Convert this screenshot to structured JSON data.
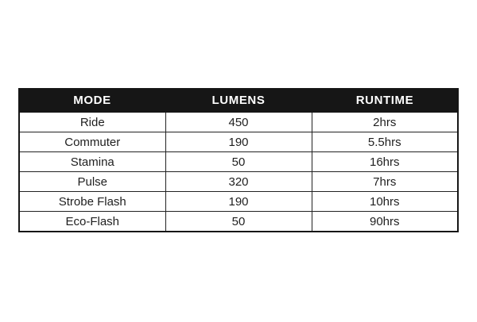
{
  "colors": {
    "page_background": "#ffffff",
    "header_background": "#161616",
    "header_text": "#ffffff",
    "cell_text": "#1f1f1f",
    "border": "#222222"
  },
  "chart_data": {
    "type": "table",
    "title": "",
    "columns": [
      "MODE",
      "LUMENS",
      "RUNTIME"
    ],
    "rows": [
      [
        "Ride",
        "450",
        "2hrs"
      ],
      [
        "Commuter",
        "190",
        "5.5hrs"
      ],
      [
        "Stamina",
        "50",
        "16hrs"
      ],
      [
        "Pulse",
        "320",
        "7hrs"
      ],
      [
        "Strobe Flash",
        "190",
        "10hrs"
      ],
      [
        "Eco-Flash",
        "50",
        "90hrs"
      ]
    ]
  },
  "table": {
    "headers": {
      "mode": "MODE",
      "lumens": "LUMENS",
      "runtime": "RUNTIME"
    },
    "rows": [
      {
        "mode": "Ride",
        "lumens": "450",
        "runtime": "2hrs"
      },
      {
        "mode": "Commuter",
        "lumens": "190",
        "runtime": "5.5hrs"
      },
      {
        "mode": "Stamina",
        "lumens": "50",
        "runtime": "16hrs"
      },
      {
        "mode": "Pulse",
        "lumens": "320",
        "runtime": "7hrs"
      },
      {
        "mode": "Strobe Flash",
        "lumens": "190",
        "runtime": "10hrs"
      },
      {
        "mode": "Eco-Flash",
        "lumens": "50",
        "runtime": "90hrs"
      }
    ]
  }
}
